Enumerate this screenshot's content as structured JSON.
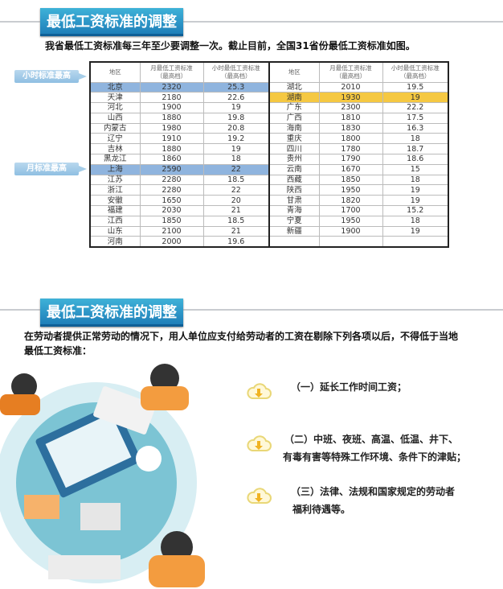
{
  "section1": {
    "title": "最低工资标准的调整",
    "intro": "我省最低工资标准每三年至少要调整一次。截止目前，全国31省份最低工资标准如图。"
  },
  "tags": {
    "hourly_highest": "小时标准最高",
    "monthly_highest": "月标准最高"
  },
  "table": {
    "headers": {
      "region": "地区",
      "monthly": "月最低工资标准",
      "monthly_sub": "（最高档）",
      "hourly": "小时最低工资标准",
      "hourly_sub": "（最高档）"
    },
    "left": [
      [
        "北京",
        "2320",
        "25.3"
      ],
      [
        "天津",
        "2180",
        "22.6"
      ],
      [
        "河北",
        "1900",
        "19"
      ],
      [
        "山西",
        "1880",
        "19.8"
      ],
      [
        "内蒙古",
        "1980",
        "20.8"
      ],
      [
        "辽宁",
        "1910",
        "19.2"
      ],
      [
        "吉林",
        "1880",
        "19"
      ],
      [
        "黑龙江",
        "1860",
        "18"
      ],
      [
        "上海",
        "2590",
        "22"
      ],
      [
        "江苏",
        "2280",
        "18.5"
      ],
      [
        "浙江",
        "2280",
        "22"
      ],
      [
        "安徽",
        "1650",
        "20"
      ],
      [
        "福建",
        "2030",
        "21"
      ],
      [
        "江西",
        "1850",
        "18.5"
      ],
      [
        "山东",
        "2100",
        "21"
      ],
      [
        "河南",
        "2000",
        "19.6"
      ]
    ],
    "right": [
      [
        "湖北",
        "2010",
        "19.5"
      ],
      [
        "湖南",
        "1930",
        "19"
      ],
      [
        "广东",
        "2300",
        "22.2"
      ],
      [
        "广西",
        "1810",
        "17.5"
      ],
      [
        "海南",
        "1830",
        "16.3"
      ],
      [
        "重庆",
        "1800",
        "18"
      ],
      [
        "四川",
        "1780",
        "18.7"
      ],
      [
        "贵州",
        "1790",
        "18.6"
      ],
      [
        "云南",
        "1670",
        "15"
      ],
      [
        "西藏",
        "1850",
        "18"
      ],
      [
        "陕西",
        "1950",
        "19"
      ],
      [
        "甘肃",
        "1820",
        "19"
      ],
      [
        "青海",
        "1700",
        "15.2"
      ],
      [
        "宁夏",
        "1950",
        "18"
      ],
      [
        "新疆",
        "1900",
        "19"
      ]
    ],
    "highlight_blue": [
      "北京",
      "上海"
    ],
    "highlight_yellow": [
      "湖南"
    ],
    "colors": {
      "blue": "#8fb4de",
      "yellow": "#f5c842"
    }
  },
  "section2": {
    "title": "最低工资标准的调整",
    "intro_line1": "在劳动者提供正常劳动的情况下，用人单位应支付给劳动者的工资在剔除下列各项以后，不得低于当地",
    "intro_line2": "最低工资标准：",
    "items": [
      {
        "line1": "（一）延长工作时间工资；",
        "line2": ""
      },
      {
        "line1": "（二）中班、夜班、高温、低温、井下、",
        "line2": "有毒有害等特殊工作环境、条件下的津贴；"
      },
      {
        "line1": "（三）法律、法规和国家规定的劳动者",
        "line2": "福利待遇等。"
      }
    ],
    "icon": "cloud-download-icon"
  }
}
